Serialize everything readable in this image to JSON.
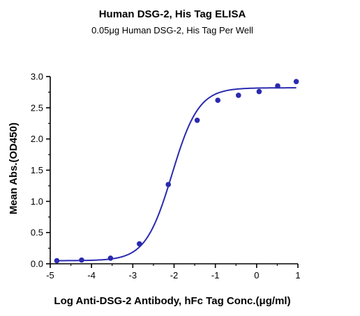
{
  "chart_data": {
    "type": "scatter",
    "title": "Human DSG-2, His Tag ELISA",
    "subtitle": "0.05μg Human DSG-2, His Tag Per Well",
    "xlabel": "Log Anti-DSG-2 Antibody, hFc Tag Conc.(μg/ml)",
    "ylabel": "Mean Abs.(OD450)",
    "xlim": [
      -5,
      1
    ],
    "ylim": [
      0,
      3.0
    ],
    "x_ticks": [
      "-5",
      "-4",
      "-3",
      "-2",
      "-1",
      "0",
      "1"
    ],
    "y_ticks": [
      "0.0",
      "0.5",
      "1.0",
      "1.5",
      "2.0",
      "2.5",
      "3.0"
    ],
    "grid": false,
    "colors": {
      "series": "#2a2ab0",
      "axis": "#000000"
    },
    "series": [
      {
        "points": [
          {
            "x": -4.84,
            "y": 0.05
          },
          {
            "x": -4.24,
            "y": 0.06
          },
          {
            "x": -3.54,
            "y": 0.09
          },
          {
            "x": -2.84,
            "y": 0.32
          },
          {
            "x": -2.14,
            "y": 1.27
          },
          {
            "x": -1.44,
            "y": 2.3
          },
          {
            "x": -0.94,
            "y": 2.62
          },
          {
            "x": -0.44,
            "y": 2.7
          },
          {
            "x": 0.06,
            "y": 2.76
          },
          {
            "x": 0.51,
            "y": 2.85
          },
          {
            "x": 0.96,
            "y": 2.92
          }
        ],
        "fit": {
          "model": "4PL",
          "bottom": 0.05,
          "top": 2.82,
          "logEC50": -2.05,
          "hill": 1.35
        }
      }
    ]
  }
}
